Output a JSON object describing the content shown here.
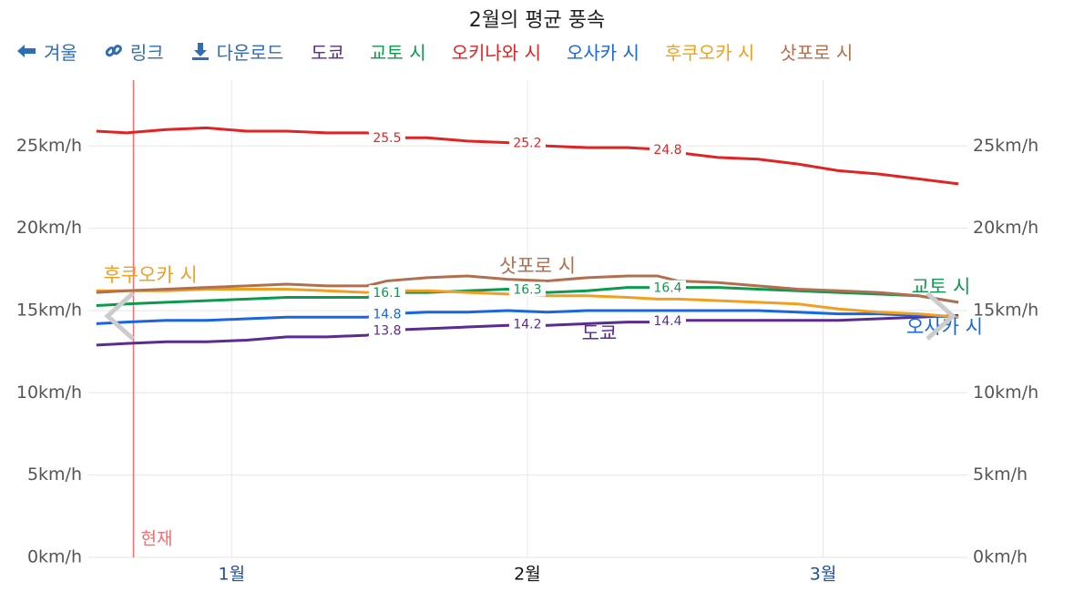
{
  "chart_data": {
    "type": "line",
    "title": "2월의 평균 풍속",
    "toolbar": [
      "겨울",
      "링크",
      "다운로드"
    ],
    "x": [
      2,
      5,
      9,
      13,
      17,
      21,
      25,
      29,
      31,
      35,
      39,
      43,
      47,
      51,
      55,
      58,
      60,
      64,
      68,
      72,
      76,
      80,
      84,
      88
    ],
    "xlim": [
      1.2,
      88.9
    ],
    "xticks": [
      {
        "value": 15.5,
        "label": "1월"
      },
      {
        "value": 45,
        "label": "2월"
      },
      {
        "value": 74.5,
        "label": "3월"
      }
    ],
    "ylim": [
      0,
      29
    ],
    "yticks": [
      {
        "value": 0,
        "label": "0km/h"
      },
      {
        "value": 5,
        "label": "5km/h"
      },
      {
        "value": 10,
        "label": "10km/h"
      },
      {
        "value": 15,
        "label": "15km/h"
      },
      {
        "value": 20,
        "label": "20km/h"
      },
      {
        "value": 25,
        "label": "25km/h"
      }
    ],
    "grid": true,
    "marker": {
      "text": "현재",
      "x": 5.7,
      "color": "#f07070"
    },
    "series": [
      {
        "name": "도쿄",
        "color": "#5b2c8f",
        "values": [
          12.9,
          13.0,
          13.1,
          13.1,
          13.2,
          13.4,
          13.4,
          13.5,
          13.8,
          13.9,
          14.0,
          14.1,
          14.1,
          14.2,
          14.3,
          14.3,
          14.4,
          14.4,
          14.4,
          14.4,
          14.4,
          14.5,
          14.6,
          14.7
        ],
        "labels": [
          {
            "x": 31,
            "value": 13.8
          },
          {
            "x": 45,
            "value": 14.2
          },
          {
            "x": 59,
            "value": 14.4
          }
        ]
      },
      {
        "name": "교토 시",
        "color": "#0e9a4e",
        "values": [
          15.3,
          15.4,
          15.5,
          15.6,
          15.7,
          15.8,
          15.8,
          15.8,
          16.1,
          16.1,
          16.2,
          16.3,
          16.1,
          16.2,
          16.4,
          16.4,
          16.4,
          16.4,
          16.3,
          16.2,
          16.1,
          16.0,
          15.9,
          15.5
        ],
        "labels": [
          {
            "x": 31,
            "value": 16.1
          },
          {
            "x": 45,
            "value": 16.3
          },
          {
            "x": 59,
            "value": 16.4
          }
        ]
      },
      {
        "name": "오키나와 시",
        "color": "#e02424",
        "values": [
          25.9,
          25.8,
          26.0,
          26.1,
          25.9,
          25.9,
          25.8,
          25.8,
          25.5,
          25.5,
          25.3,
          25.2,
          25.0,
          24.9,
          24.9,
          24.8,
          24.6,
          24.3,
          24.2,
          23.9,
          23.5,
          23.3,
          23.0,
          22.7
        ],
        "labels": [
          {
            "x": 31,
            "value": 25.5
          },
          {
            "x": 45,
            "value": 25.2
          },
          {
            "x": 59,
            "value": 24.8
          }
        ]
      },
      {
        "name": "오사카 시",
        "color": "#1a66e0",
        "values": [
          14.2,
          14.3,
          14.4,
          14.4,
          14.5,
          14.6,
          14.6,
          14.6,
          14.8,
          14.9,
          14.9,
          15.0,
          14.9,
          15.0,
          15.0,
          15.0,
          15.0,
          15.0,
          15.0,
          14.9,
          14.8,
          14.8,
          14.7,
          14.6
        ],
        "labels": [
          {
            "x": 31,
            "value": 14.8
          }
        ]
      },
      {
        "name": "후쿠오카 시",
        "color": "#f0a020",
        "values": [
          16.2,
          16.2,
          16.2,
          16.3,
          16.3,
          16.3,
          16.2,
          16.1,
          16.2,
          16.2,
          16.1,
          16.0,
          15.9,
          15.9,
          15.8,
          15.7,
          15.7,
          15.6,
          15.5,
          15.4,
          15.1,
          14.9,
          14.8,
          14.6
        ]
      },
      {
        "name": "삿포로 시",
        "color": "#b07050",
        "values": [
          16.1,
          16.2,
          16.3,
          16.4,
          16.5,
          16.6,
          16.5,
          16.5,
          16.8,
          17.0,
          17.1,
          16.9,
          16.8,
          17.0,
          17.1,
          17.1,
          16.8,
          16.7,
          16.5,
          16.3,
          16.2,
          16.1,
          15.9,
          15.5
        ]
      }
    ]
  }
}
